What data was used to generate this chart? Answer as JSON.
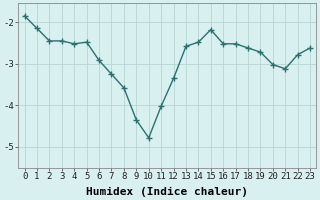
{
  "x": [
    0,
    1,
    2,
    3,
    4,
    5,
    6,
    7,
    8,
    9,
    10,
    11,
    12,
    13,
    14,
    15,
    16,
    17,
    18,
    19,
    20,
    21,
    22,
    23
  ],
  "y": [
    -1.85,
    -2.15,
    -2.45,
    -2.45,
    -2.52,
    -2.48,
    -2.92,
    -3.25,
    -3.58,
    -4.35,
    -4.78,
    -4.02,
    -3.35,
    -2.58,
    -2.48,
    -2.18,
    -2.52,
    -2.52,
    -2.62,
    -2.72,
    -3.02,
    -3.12,
    -2.78,
    -2.62
  ],
  "line_color": "#2d7070",
  "marker": "+",
  "marker_size": 4,
  "bg_color": "#d8f0f0",
  "grid_color": "#b8d4d4",
  "xlabel": "Humidex (Indice chaleur)",
  "xlabel_fontsize": 8,
  "ylim": [
    -5.5,
    -1.55
  ],
  "xlim": [
    -0.5,
    23.5
  ],
  "yticks": [
    -5,
    -4,
    -3,
    -2
  ],
  "xticks": [
    0,
    1,
    2,
    3,
    4,
    5,
    6,
    7,
    8,
    9,
    10,
    11,
    12,
    13,
    14,
    15,
    16,
    17,
    18,
    19,
    20,
    21,
    22,
    23
  ],
  "tick_fontsize": 6.5,
  "line_width": 1.0,
  "marker_lw": 1.0
}
